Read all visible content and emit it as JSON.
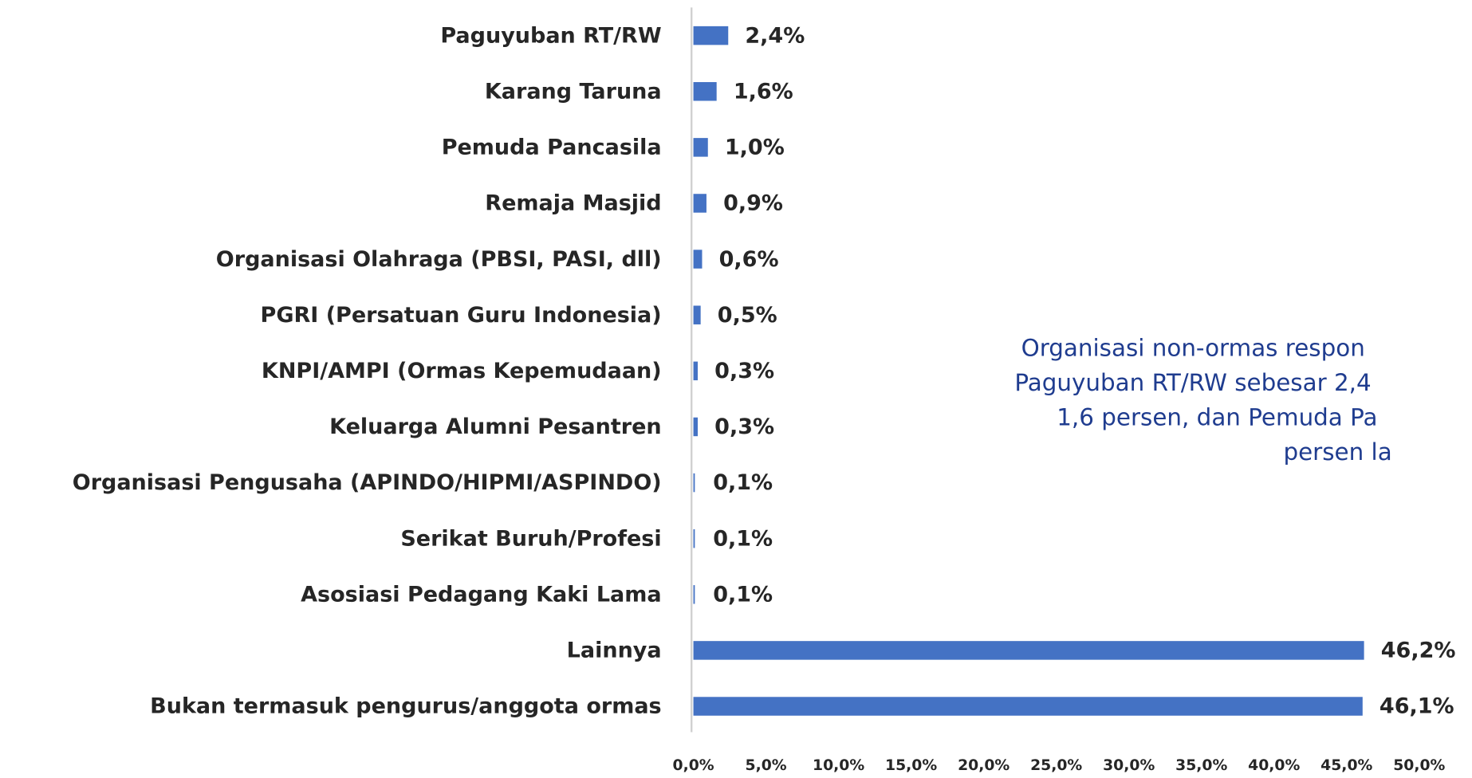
{
  "chart_data": {
    "type": "bar",
    "orientation": "horizontal",
    "categories": [
      "Paguyuban RT/RW",
      "Karang Taruna",
      "Pemuda Pancasila",
      "Remaja Masjid",
      "Organisasi Olahraga (PBSI, PASI, dll)",
      "PGRI (Persatuan Guru Indonesia)",
      "KNPI/AMPI (Ormas Kepemudaan)",
      "Keluarga Alumni Pesantren",
      "Organisasi Pengusaha (APINDO/HIPMI/ASPINDO)",
      "Serikat Buruh/Profesi",
      "Asosiasi Pedagang Kaki Lama",
      "Lainnya",
      "Bukan termasuk pengurus/anggota ormas"
    ],
    "values": [
      2.4,
      1.6,
      1.0,
      0.9,
      0.6,
      0.5,
      0.3,
      0.3,
      0.1,
      0.1,
      0.1,
      46.2,
      46.1
    ],
    "value_labels": [
      "2,4%",
      "1,6%",
      "1,0%",
      "0,9%",
      "0,6%",
      "0,5%",
      "0,3%",
      "0,3%",
      "0,1%",
      "0,1%",
      "0,1%",
      "46,2%",
      "46,1%"
    ],
    "color": "#4472c4",
    "xlim": [
      0,
      50
    ],
    "xticks": [
      {
        "value": 0,
        "label": "0,0%"
      },
      {
        "value": 5,
        "label": "5,0%"
      },
      {
        "value": 10,
        "label": "10,0%"
      },
      {
        "value": 15,
        "label": "15,0%"
      },
      {
        "value": 20,
        "label": "20,0%"
      },
      {
        "value": 25,
        "label": "25,0%"
      },
      {
        "value": 30,
        "label": "30,0%"
      },
      {
        "value": 35,
        "label": "35,0%"
      },
      {
        "value": 40,
        "label": "40,0%"
      },
      {
        "value": 45,
        "label": "45,0%"
      },
      {
        "value": 50,
        "label": "50,0%"
      }
    ],
    "grid": false,
    "annotation": [
      "Organisasi non-ormas respon",
      "Paguyuban RT/RW sebesar 2,4",
      "1,6 persen, dan Pemuda Pa",
      "persen la"
    ]
  }
}
